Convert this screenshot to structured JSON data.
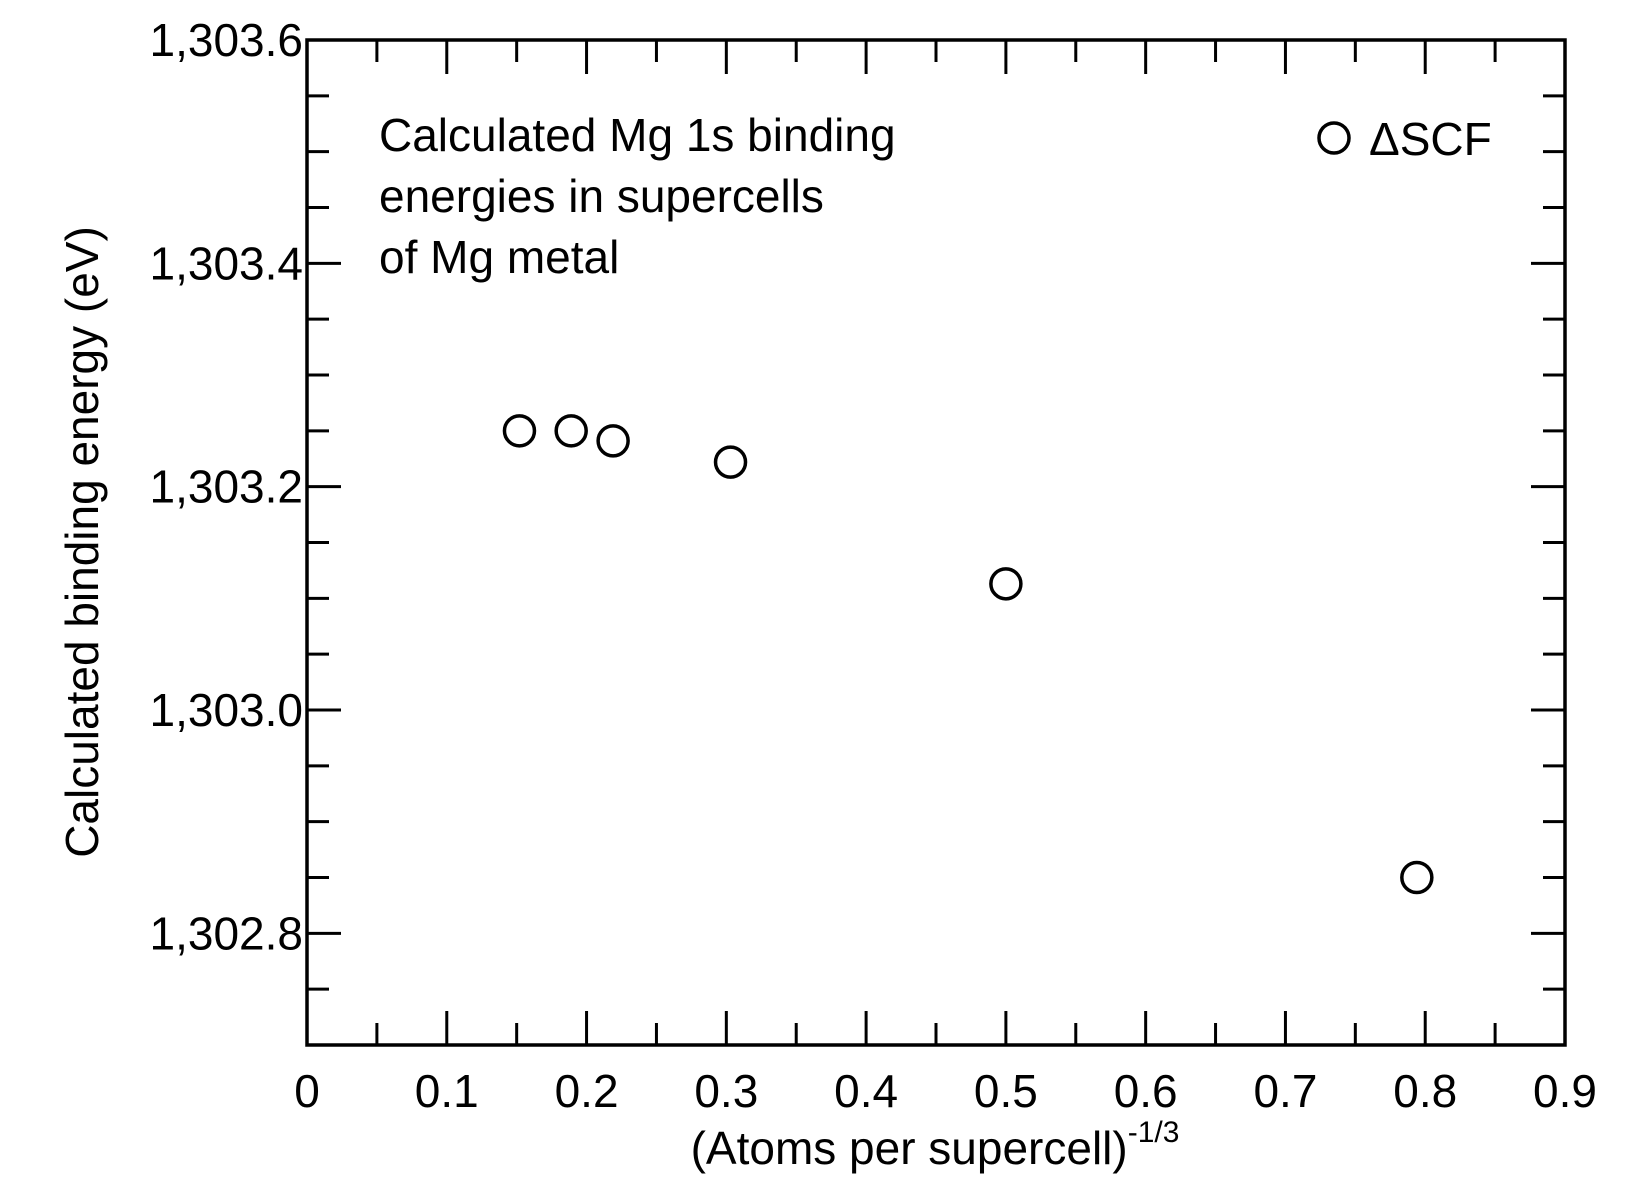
{
  "chart_data": {
    "type": "scatter",
    "xlabel": "(Atoms per supercell)",
    "xlabel_superscript": "-1/3",
    "ylabel": "Calculated binding energy (eV)",
    "annotation_lines": [
      "Calculated Mg 1s binding",
      "energies in supercells",
      "of Mg metal"
    ],
    "legend": {
      "position": "top-right",
      "entries": [
        {
          "label": "ΔSCF",
          "marker": "open-circle"
        }
      ]
    },
    "xlim": [
      0,
      0.9
    ],
    "ylim": [
      1302.7,
      1303.6
    ],
    "x_ticks": [
      0,
      0.1,
      0.2,
      0.3,
      0.4,
      0.5,
      0.6,
      0.7,
      0.8,
      0.9
    ],
    "x_tick_labels": [
      "0",
      "0.1",
      "0.2",
      "0.3",
      "0.4",
      "0.5",
      "0.6",
      "0.7",
      "0.8",
      "0.9"
    ],
    "y_ticks": [
      1302.8,
      1303.0,
      1303.2,
      1303.4,
      1303.6
    ],
    "y_tick_labels": [
      "1,302.8",
      "1,303.0",
      "1,303.2",
      "1,303.4",
      "1,303.6"
    ],
    "grid": false,
    "series": [
      {
        "name": "ΔSCF",
        "x": [
          0.152,
          0.189,
          0.219,
          0.303,
          0.5,
          0.794
        ],
        "y": [
          1303.25,
          1303.25,
          1303.241,
          1303.222,
          1303.113,
          1302.85
        ]
      }
    ]
  }
}
